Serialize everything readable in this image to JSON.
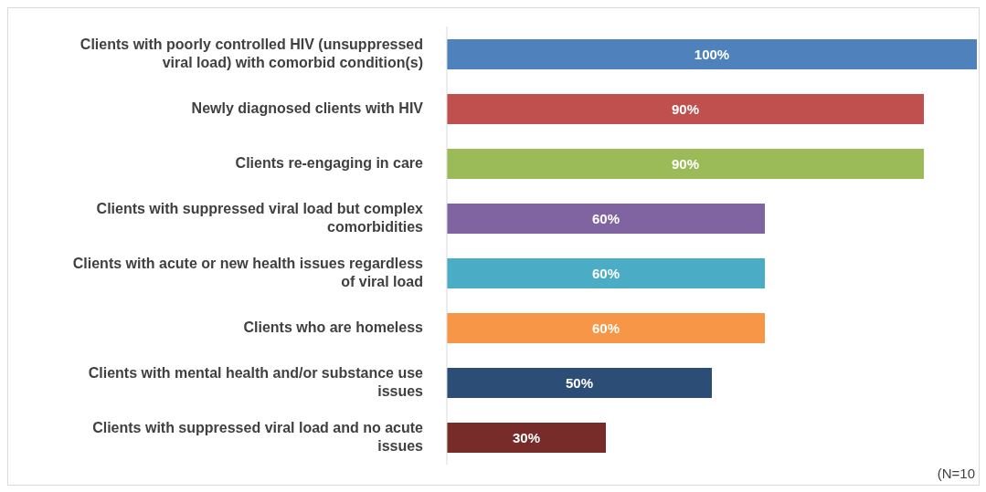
{
  "chart_data": {
    "type": "bar",
    "orientation": "horizontal",
    "categories": [
      "Clients with poorly controlled HIV (unsuppressed viral load) with comorbid condition(s)",
      "Newly diagnosed clients with HIV",
      "Clients re-engaging in care",
      "Clients with suppressed viral load but complex comorbidities",
      "Clients with acute or new health issues regardless of viral load",
      "Clients who are homeless",
      "Clients with mental health and/or substance use issues",
      "Clients with suppressed viral load and no acute issues"
    ],
    "values": [
      100,
      90,
      90,
      60,
      60,
      60,
      50,
      30
    ],
    "colors": [
      "#4f81bd",
      "#c0504d",
      "#9bbb59",
      "#8064a2",
      "#4bacc6",
      "#f79646",
      "#2c4d75",
      "#772c2a"
    ],
    "value_labels": [
      "100%",
      "90%",
      "90%",
      "60%",
      "60%",
      "60%",
      "50%",
      "30%"
    ],
    "annotations": [
      "(N=10"
    ]
  }
}
